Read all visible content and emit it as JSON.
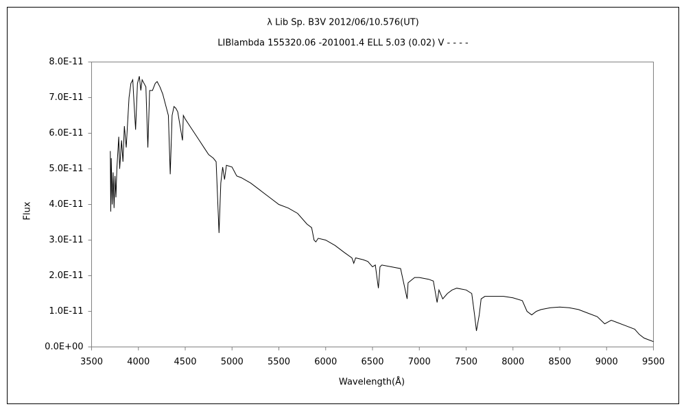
{
  "chart_data": {
    "type": "line",
    "title": "λ Lib   Sp. B3V   2012/06/10.576(UT)",
    "subtitle": "LIBlambda 155320.06 -201001.4 ELL 5.03 (0.02) V - - - -",
    "x_label": "Wavelength(Å)",
    "y_label": "Flux",
    "xlim": [
      3500,
      9500
    ],
    "xticks": [
      3500,
      4000,
      4500,
      5000,
      5500,
      6000,
      6500,
      7000,
      7500,
      8000,
      8500,
      9000,
      9500
    ],
    "ylim": [
      0,
      8e-11
    ],
    "yticks": [
      {
        "value": 0,
        "label": "0.0E+00"
      },
      {
        "value": 1e-11,
        "label": "1.0E-11"
      },
      {
        "value": 2e-11,
        "label": "2.0E-11"
      },
      {
        "value": 3e-11,
        "label": "3.0E-11"
      },
      {
        "value": 4e-11,
        "label": "4.0E-11"
      },
      {
        "value": 5e-11,
        "label": "5.0E-11"
      },
      {
        "value": 6e-11,
        "label": "6.0E-11"
      },
      {
        "value": 7e-11,
        "label": "7.0E-11"
      },
      {
        "value": 8e-11,
        "label": "8.0E-11"
      }
    ],
    "x": [
      3700,
      3705,
      3710,
      3720,
      3730,
      3740,
      3750,
      3760,
      3770,
      3790,
      3800,
      3820,
      3835,
      3850,
      3870,
      3900,
      3920,
      3940,
      3950,
      3970,
      3990,
      4010,
      4026,
      4040,
      4060,
      4080,
      4101,
      4120,
      4150,
      4180,
      4200,
      4230,
      4260,
      4290,
      4320,
      4340,
      4360,
      4380,
      4400,
      4420,
      4471,
      4480,
      4500,
      4550,
      4600,
      4650,
      4700,
      4750,
      4800,
      4830,
      4861,
      4880,
      4900,
      4920,
      4940,
      5000,
      5050,
      5100,
      5200,
      5300,
      5400,
      5500,
      5600,
      5700,
      5800,
      5850,
      5876,
      5895,
      5920,
      6000,
      6100,
      6200,
      6280,
      6300,
      6320,
      6400,
      6450,
      6500,
      6530,
      6563,
      6580,
      6600,
      6700,
      6800,
      6870,
      6880,
      6950,
      7000,
      7100,
      7150,
      7190,
      7210,
      7250,
      7300,
      7350,
      7400,
      7500,
      7560,
      7590,
      7610,
      7640,
      7660,
      7700,
      7800,
      7900,
      8000,
      8100,
      8150,
      8200,
      8250,
      8300,
      8400,
      8500,
      8600,
      8700,
      8800,
      8900,
      8980,
      9050,
      9100,
      9200,
      9300,
      9350,
      9400,
      9450,
      9500
    ],
    "series": [
      {
        "color": "#000000",
        "values": [
          5.5e-11,
          3.8e-11,
          5.3e-11,
          4e-11,
          4.9e-11,
          3.9e-11,
          4.8e-11,
          4.2e-11,
          5e-11,
          5.9e-11,
          5e-11,
          5.8e-11,
          5.2e-11,
          6.2e-11,
          5.6e-11,
          7e-11,
          7.4e-11,
          7.5e-11,
          7e-11,
          6.1e-11,
          7.4e-11,
          7.6e-11,
          7.2e-11,
          7.5e-11,
          7.4e-11,
          7.3e-11,
          5.6e-11,
          7.2e-11,
          7.2e-11,
          7.4e-11,
          7.45e-11,
          7.3e-11,
          7.1e-11,
          6.8e-11,
          6.5e-11,
          4.85e-11,
          6.5e-11,
          6.75e-11,
          6.7e-11,
          6.6e-11,
          5.8e-11,
          6.5e-11,
          6.4e-11,
          6.2e-11,
          6e-11,
          5.8e-11,
          5.6e-11,
          5.4e-11,
          5.3e-11,
          5.2e-11,
          3.2e-11,
          4.6e-11,
          5.05e-11,
          4.7e-11,
          5.1e-11,
          5.05e-11,
          4.8e-11,
          4.75e-11,
          4.6e-11,
          4.4e-11,
          4.2e-11,
          4e-11,
          3.9e-11,
          3.75e-11,
          3.45e-11,
          3.35e-11,
          3e-11,
          2.95e-11,
          3.05e-11,
          3e-11,
          2.85e-11,
          2.65e-11,
          2.5e-11,
          2.35e-11,
          2.5e-11,
          2.45e-11,
          2.4e-11,
          2.25e-11,
          2.3e-11,
          1.65e-11,
          2.25e-11,
          2.3e-11,
          2.25e-11,
          2.2e-11,
          1.35e-11,
          1.8e-11,
          1.95e-11,
          1.95e-11,
          1.9e-11,
          1.85e-11,
          1.25e-11,
          1.6e-11,
          1.35e-11,
          1.5e-11,
          1.6e-11,
          1.65e-11,
          1.6e-11,
          1.5e-11,
          9e-12,
          4.5e-12,
          9e-12,
          1.35e-11,
          1.42e-11,
          1.42e-11,
          1.42e-11,
          1.38e-11,
          1.3e-11,
          1e-11,
          9e-12,
          1e-11,
          1.05e-11,
          1.1e-11,
          1.12e-11,
          1.1e-11,
          1.05e-11,
          9.5e-12,
          8.5e-12,
          6.5e-12,
          7.5e-12,
          7e-12,
          6e-12,
          5e-12,
          3.5e-12,
          2.5e-12,
          2e-12,
          1.5e-12
        ]
      }
    ]
  }
}
